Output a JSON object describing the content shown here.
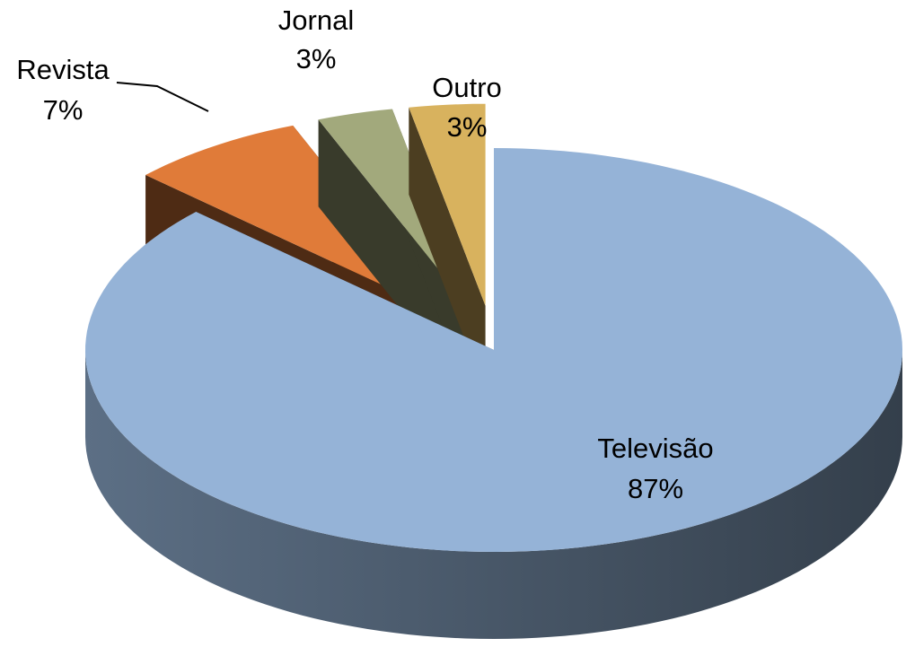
{
  "chart_data": {
    "type": "pie",
    "categories": [
      "Televisão",
      "Revista",
      "Jornal",
      "Outro"
    ],
    "values": [
      87,
      7,
      3,
      3
    ],
    "value_labels": [
      "87%",
      "7%",
      "3%",
      "3%"
    ],
    "colors": [
      "#95b3d7",
      "#e07b39",
      "#a2a97c",
      "#d8b25e"
    ]
  }
}
